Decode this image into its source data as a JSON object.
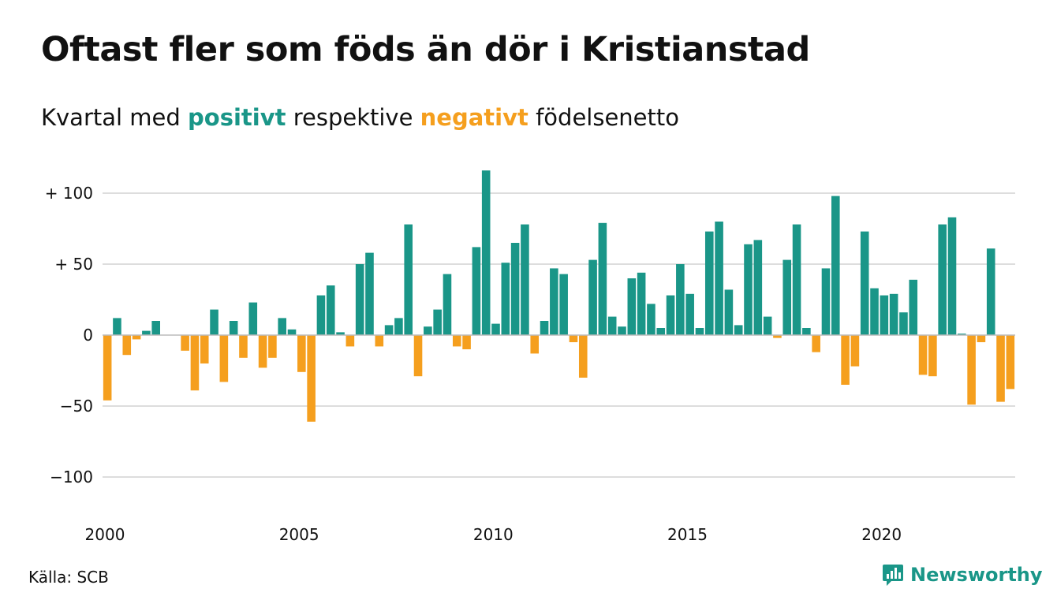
{
  "title": "Oftast fler som föds än dör i Kristianstad",
  "subtitle": {
    "prefix": "Kvartal med ",
    "positive_word": "positivt",
    "middle": " respektive ",
    "negative_word": "negativt",
    "suffix": " födelsenetto"
  },
  "source": "Källa: SCB",
  "brand": {
    "name": "Newsworthy",
    "icon": "newsworthy-logo-icon"
  },
  "colors": {
    "positive": "#1a9688",
    "negative": "#f59f1e",
    "grid": "#dddddd",
    "text": "#111111"
  },
  "chart_data": {
    "type": "bar",
    "x_start": 2000.0,
    "x_step": 0.25,
    "ylim": [
      -125,
      125
    ],
    "xlim": [
      2000,
      2023.5
    ],
    "yticks": [
      100,
      50,
      0,
      -50,
      -100
    ],
    "ytick_labels": [
      "+ 100",
      "+  50",
      "0",
      "−50",
      "−100"
    ],
    "xticks": [
      2000,
      2005,
      2010,
      2015,
      2020
    ],
    "xtick_labels": [
      "2000",
      "2005",
      "2010",
      "2015",
      "2020"
    ],
    "grid": true,
    "values": [
      -46,
      12,
      -14,
      -3,
      3,
      10,
      0,
      0,
      -11,
      -39,
      -20,
      18,
      -33,
      10,
      -16,
      23,
      -23,
      -16,
      12,
      4,
      -26,
      -61,
      28,
      35,
      2,
      -8,
      50,
      58,
      -8,
      7,
      12,
      78,
      -29,
      6,
      18,
      43,
      -8,
      -10,
      62,
      116,
      8,
      51,
      65,
      78,
      -13,
      10,
      47,
      43,
      -5,
      -30,
      53,
      79,
      13,
      6,
      40,
      44,
      22,
      5,
      28,
      50,
      29,
      5,
      73,
      80,
      32,
      7,
      64,
      67,
      13,
      -2,
      53,
      78,
      5,
      -12,
      47,
      98,
      -35,
      -22,
      73,
      33,
      28,
      29,
      16,
      39,
      -28,
      -29,
      78,
      83,
      1,
      -49,
      -5,
      61,
      -47,
      -38
    ]
  }
}
